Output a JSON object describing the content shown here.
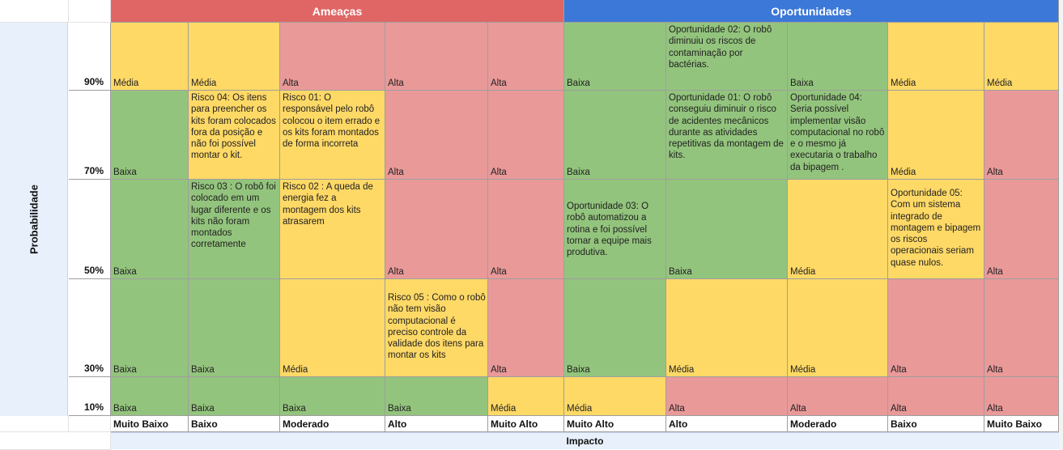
{
  "headers": {
    "threats": "Ameaças",
    "opportunities": "Oportunidades",
    "probability_axis": "Probabilidade",
    "impact_axis": "Impacto",
    "colors": {
      "threats": "#e06666",
      "opportunities": "#3c78d8"
    }
  },
  "probabilities": [
    "90%",
    "70%",
    "50%",
    "30%",
    "10%"
  ],
  "impacts": [
    "Muito Baixo",
    "Baixo",
    "Moderado",
    "Alto",
    "Muito Alto",
    "Muito Alto",
    "Alto",
    "Moderado",
    "Baixo",
    "Muito Baixo"
  ],
  "level_colors": {
    "Baixa": "#93c47d",
    "Média": "#ffd966",
    "Alta": "#ea9999"
  },
  "rows": [
    {
      "cells": [
        {
          "level": "Média",
          "text": ""
        },
        {
          "level": "Média",
          "text": ""
        },
        {
          "level": "Alta",
          "text": ""
        },
        {
          "level": "Alta",
          "text": ""
        },
        {
          "level": "Alta",
          "text": ""
        },
        {
          "level": "Baixa",
          "text": ""
        },
        {
          "level": "Baixa",
          "text": "Oportunidade 02: O robô diminuiu os riscos de contaminação por bactérias.",
          "hide_level": true
        },
        {
          "level": "Baixa",
          "text": ""
        },
        {
          "level": "Média",
          "text": ""
        },
        {
          "level": "Média",
          "text": ""
        }
      ]
    },
    {
      "cells": [
        {
          "level": "Baixa",
          "text": ""
        },
        {
          "level": "Média",
          "text": "Risco 04: Os itens para preencher os kits foram colocados fora da posição e não foi possível montar o kit.",
          "hide_level": true
        },
        {
          "level": "Média",
          "text": "Risco 01: O responsável pelo robô colocou o item errado e os kits foram montados de forma incorreta",
          "hide_level": true
        },
        {
          "level": "Alta",
          "text": ""
        },
        {
          "level": "Alta",
          "text": ""
        },
        {
          "level": "Baixa",
          "text": ""
        },
        {
          "level": "Baixa",
          "text": "Oportunidade 01: O robô conseguiu diminuir o risco de acidentes mecânicos durante as atividades repetitivas da montagem de kits.",
          "hide_level": true
        },
        {
          "level": "Baixa",
          "text": "Oportunidade 04: Seria possível implementar visão computacional no robô e o mesmo já executaria o trabalho da bipagem .",
          "hide_level": true
        },
        {
          "level": "Média",
          "text": ""
        },
        {
          "level": "Alta",
          "text": ""
        }
      ]
    },
    {
      "cells": [
        {
          "level": "Baixa",
          "text": ""
        },
        {
          "level": "Baixa",
          "text": "Risco 03 : O robô foi colocado em um lugar diferente e os kits não foram montados corretamente",
          "hide_level": true
        },
        {
          "level": "Média",
          "text": "Risco 02 : A queda de energia fez a montagem dos kits atrasarem",
          "hide_level": true
        },
        {
          "level": "Alta",
          "text": ""
        },
        {
          "level": "Alta",
          "text": ""
        },
        {
          "level": "Baixa",
          "text": "Oportunidade 03: O robô automatizou a rotina e foi possível tornar a equipe mais produtiva.",
          "hide_level": true,
          "text_top": 26
        },
        {
          "level": "Baixa",
          "text": ""
        },
        {
          "level": "Média",
          "text": ""
        },
        {
          "level": "Média",
          "text": "Oportunidade 05: Com um sistema integrado de montagem e bipagem os riscos operacionais seriam quase nulos.",
          "hide_level": true,
          "text_top": 10
        },
        {
          "level": "Alta",
          "text": ""
        }
      ]
    },
    {
      "cells": [
        {
          "level": "Baixa",
          "text": ""
        },
        {
          "level": "Baixa",
          "text": ""
        },
        {
          "level": "Média",
          "text": ""
        },
        {
          "level": "Média",
          "text": "Risco 05 : Como o robô não tem visão computacional é preciso controle da validade dos itens para montar os kits",
          "hide_level": true,
          "text_top": 16
        },
        {
          "level": "Alta",
          "text": ""
        },
        {
          "level": "Baixa",
          "text": ""
        },
        {
          "level": "Média",
          "text": ""
        },
        {
          "level": "Média",
          "text": ""
        },
        {
          "level": "Alta",
          "text": ""
        },
        {
          "level": "Alta",
          "text": ""
        }
      ]
    },
    {
      "cells": [
        {
          "level": "Baixa",
          "text": ""
        },
        {
          "level": "Baixa",
          "text": ""
        },
        {
          "level": "Baixa",
          "text": ""
        },
        {
          "level": "Baixa",
          "text": ""
        },
        {
          "level": "Média",
          "text": ""
        },
        {
          "level": "Média",
          "text": ""
        },
        {
          "level": "Alta",
          "text": ""
        },
        {
          "level": "Alta",
          "text": ""
        },
        {
          "level": "Alta",
          "text": ""
        },
        {
          "level": "Alta",
          "text": ""
        }
      ]
    }
  ]
}
